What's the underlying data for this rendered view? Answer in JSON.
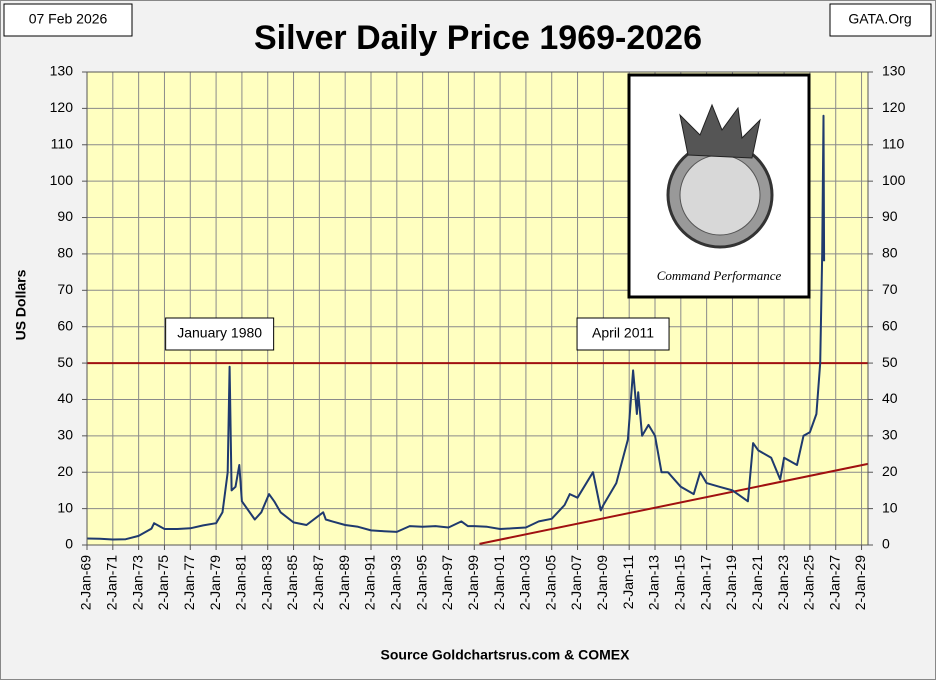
{
  "chart_data": {
    "type": "line",
    "title": "Silver Daily Price 1969-2026",
    "date_label": "07 Feb 2026",
    "site_label": "GATA.Org",
    "source": "Source Goldchartsrus.com & COMEX",
    "ylabel": "US Dollars",
    "inset_caption": "Command Performance",
    "annotations": [
      {
        "text": "January 1980",
        "x": 1980.05,
        "y": 49
      },
      {
        "text": "April 2011",
        "x": 2011.3,
        "y": 48
      }
    ],
    "xlim": [
      1969,
      2029.5
    ],
    "xticks": [
      {
        "value": 1969,
        "label": "2-Jan-69"
      },
      {
        "value": 1971,
        "label": "2-Jan-71"
      },
      {
        "value": 1973,
        "label": "2-Jan-73"
      },
      {
        "value": 1975,
        "label": "2-Jan-75"
      },
      {
        "value": 1977,
        "label": "2-Jan-77"
      },
      {
        "value": 1979,
        "label": "2-Jan-79"
      },
      {
        "value": 1981,
        "label": "2-Jan-81"
      },
      {
        "value": 1983,
        "label": "2-Jan-83"
      },
      {
        "value": 1985,
        "label": "2-Jan-85"
      },
      {
        "value": 1987,
        "label": "2-Jan-87"
      },
      {
        "value": 1989,
        "label": "2-Jan-89"
      },
      {
        "value": 1991,
        "label": "2-Jan-91"
      },
      {
        "value": 1993,
        "label": "2-Jan-93"
      },
      {
        "value": 1995,
        "label": "2-Jan-95"
      },
      {
        "value": 1997,
        "label": "2-Jan-97"
      },
      {
        "value": 1999,
        "label": "2-Jan-99"
      },
      {
        "value": 2001,
        "label": "2-Jan-01"
      },
      {
        "value": 2003,
        "label": "2-Jan-03"
      },
      {
        "value": 2005,
        "label": "2-Jan-05"
      },
      {
        "value": 2007,
        "label": "2-Jan-07"
      },
      {
        "value": 2009,
        "label": "2-Jan-09"
      },
      {
        "value": 2011,
        "label": "2-Jan-11"
      },
      {
        "value": 2013,
        "label": "2-Jan-13"
      },
      {
        "value": 2015,
        "label": "2-Jan-15"
      },
      {
        "value": 2017,
        "label": "2-Jan-17"
      },
      {
        "value": 2019,
        "label": "2-Jan-19"
      },
      {
        "value": 2021,
        "label": "2-Jan-21"
      },
      {
        "value": 2023,
        "label": "2-Jan-23"
      },
      {
        "value": 2025,
        "label": "2-Jan-25"
      },
      {
        "value": 2027,
        "label": "2-Jan-27"
      },
      {
        "value": 2029,
        "label": "2-Jan-29"
      }
    ],
    "ylim": [
      0,
      130
    ],
    "yticks": [
      0,
      10,
      20,
      30,
      40,
      50,
      60,
      70,
      80,
      90,
      100,
      110,
      120,
      130
    ],
    "grid": true,
    "series": [
      {
        "name": "Silver",
        "color": "#1f3a6e",
        "x": [
          1969,
          1970,
          1971,
          1972,
          1973,
          1974,
          1974.2,
          1975,
          1976,
          1977,
          1978,
          1979,
          1979.5,
          1979.9,
          1980.05,
          1980.2,
          1980.5,
          1980.8,
          1981,
          1982,
          1982.5,
          1983.1,
          1983.5,
          1984,
          1985,
          1986,
          1987.3,
          1987.5,
          1988,
          1989,
          1990,
          1991,
          1992,
          1993,
          1994,
          1995,
          1996,
          1997,
          1998,
          1998.5,
          1999,
          2000,
          2001,
          2002,
          2003,
          2004,
          2005,
          2006,
          2006.4,
          2007,
          2008.2,
          2008.8,
          2009,
          2010,
          2010.9,
          2011.3,
          2011.6,
          2011.7,
          2012,
          2012.5,
          2013,
          2013.5,
          2014,
          2015,
          2016,
          2016.5,
          2017,
          2018,
          2019,
          2020.2,
          2020.6,
          2021,
          2022,
          2022.7,
          2023,
          2024,
          2024.5,
          2025,
          2025.5,
          2025.8,
          2025.95,
          2026.05,
          2026.1
        ],
        "values": [
          1.8,
          1.7,
          1.5,
          1.6,
          2.5,
          4.5,
          6,
          4.4,
          4.4,
          4.6,
          5.4,
          6,
          9,
          20,
          49,
          15,
          16,
          22,
          12,
          7,
          9,
          14,
          12,
          9,
          6.2,
          5.5,
          9,
          7,
          6.5,
          5.5,
          5,
          4,
          3.8,
          3.6,
          5.2,
          5,
          5.2,
          4.8,
          6.5,
          5.2,
          5.2,
          5,
          4.4,
          4.6,
          4.8,
          6.5,
          7.2,
          11,
          14,
          13,
          20,
          9.5,
          11,
          17,
          29,
          48,
          36,
          42,
          30,
          33,
          30,
          20,
          20,
          16,
          14,
          20,
          17,
          16,
          15,
          12,
          28,
          26,
          24,
          18,
          24,
          22,
          30,
          31,
          36,
          50,
          80,
          118,
          78
        ]
      }
    ],
    "reference_line": {
      "value": 50,
      "color": "#a01010"
    },
    "trend_line": {
      "color": "#a01010",
      "x": [
        1999.4,
        2029.5
      ],
      "values": [
        0.3,
        22.3
      ]
    }
  }
}
